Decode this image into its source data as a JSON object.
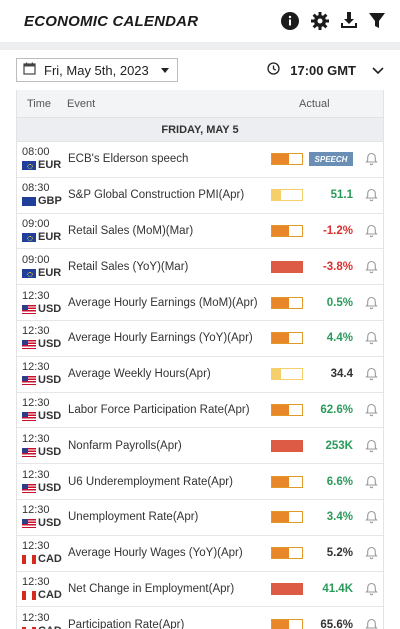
{
  "header": {
    "title": "ECONOMIC CALENDAR",
    "icons": [
      "info-icon",
      "gear-icon",
      "download-icon",
      "filter-icon"
    ]
  },
  "filters": {
    "date": "Fri, May 5th, 2023",
    "time": "17:00 GMT"
  },
  "columns": {
    "time": "Time",
    "event": "Event",
    "actual": "Actual"
  },
  "day_label": "FRIDAY, MAY 5",
  "colors": {
    "high": "#dd5a45",
    "medium": "#e8862a",
    "low": "#f5cf6a",
    "green": "#2a9a5a",
    "red": "#d93030",
    "speech": "#6b8fb4"
  },
  "events": [
    {
      "time": "08:00",
      "currency": "EUR",
      "flag": "eur",
      "name": "ECB's Elderson speech",
      "impact": "medium",
      "actual": "",
      "badge": "SPEECH",
      "tone": "neutral"
    },
    {
      "time": "08:30",
      "currency": "GBP",
      "flag": "gbp",
      "name": "S&P Global Construction PMI(Apr)",
      "impact": "low",
      "actual": "51.1",
      "tone": "green"
    },
    {
      "time": "09:00",
      "currency": "EUR",
      "flag": "eur",
      "name": "Retail Sales (MoM)(Mar)",
      "impact": "medium",
      "actual": "-1.2%",
      "tone": "red"
    },
    {
      "time": "09:00",
      "currency": "EUR",
      "flag": "eur",
      "name": "Retail Sales (YoY)(Mar)",
      "impact": "high",
      "actual": "-3.8%",
      "tone": "red"
    },
    {
      "time": "12:30",
      "currency": "USD",
      "flag": "usd",
      "name": "Average Hourly Earnings (MoM)(Apr)",
      "impact": "medium",
      "actual": "0.5%",
      "tone": "green"
    },
    {
      "time": "12:30",
      "currency": "USD",
      "flag": "usd",
      "name": "Average Hourly Earnings (YoY)(Apr)",
      "impact": "medium",
      "actual": "4.4%",
      "tone": "green"
    },
    {
      "time": "12:30",
      "currency": "USD",
      "flag": "usd",
      "name": "Average Weekly Hours(Apr)",
      "impact": "low",
      "actual": "34.4",
      "tone": "neutral"
    },
    {
      "time": "12:30",
      "currency": "USD",
      "flag": "usd",
      "name": "Labor Force Participation Rate(Apr)",
      "impact": "medium",
      "actual": "62.6%",
      "tone": "green"
    },
    {
      "time": "12:30",
      "currency": "USD",
      "flag": "usd",
      "name": "Nonfarm Payrolls(Apr)",
      "impact": "high",
      "actual": "253K",
      "tone": "green"
    },
    {
      "time": "12:30",
      "currency": "USD",
      "flag": "usd",
      "name": "U6 Underemployment Rate(Apr)",
      "impact": "medium",
      "actual": "6.6%",
      "tone": "green"
    },
    {
      "time": "12:30",
      "currency": "USD",
      "flag": "usd",
      "name": "Unemployment Rate(Apr)",
      "impact": "medium",
      "actual": "3.4%",
      "tone": "green"
    },
    {
      "time": "12:30",
      "currency": "CAD",
      "flag": "cad",
      "name": "Average Hourly Wages (YoY)(Apr)",
      "impact": "medium",
      "actual": "5.2%",
      "tone": "neutral"
    },
    {
      "time": "12:30",
      "currency": "CAD",
      "flag": "cad",
      "name": "Net Change in Employment(Apr)",
      "impact": "high",
      "actual": "41.4K",
      "tone": "green"
    },
    {
      "time": "12:30",
      "currency": "CAD",
      "flag": "cad",
      "name": "Participation Rate(Apr)",
      "impact": "medium",
      "actual": "65.6%",
      "tone": "neutral"
    }
  ]
}
